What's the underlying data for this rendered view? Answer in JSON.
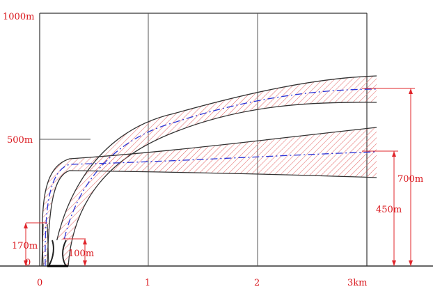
{
  "axis": {
    "y_labels": [
      "1000m",
      "500m",
      "0"
    ],
    "x_labels": [
      "0",
      "1",
      "2",
      "3km"
    ]
  },
  "annotations": {
    "stack_height": "170m",
    "tower_height": "100m",
    "plume_rise_tower": "700m",
    "plume_rise_stack": "450m"
  },
  "colors": {
    "frame": "#333333",
    "dimension": "#e0242a",
    "centerline": "#2b34d6",
    "hatch": "#e05a5a"
  }
}
